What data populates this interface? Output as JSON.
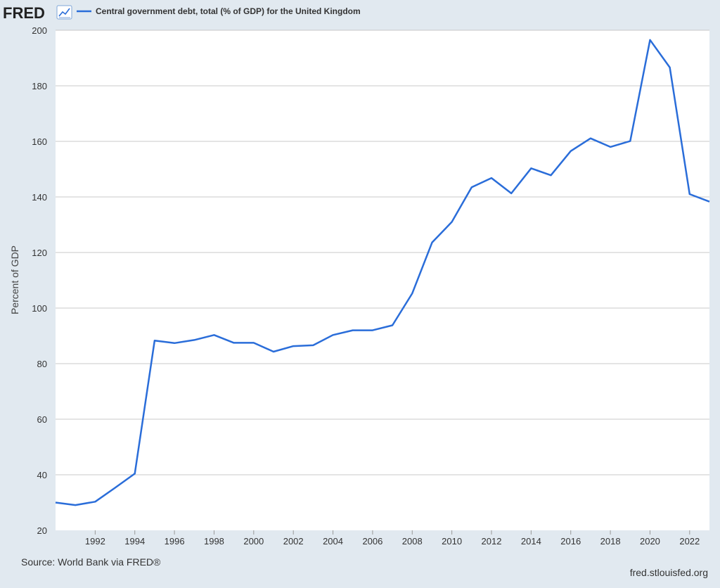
{
  "branding": {
    "logo_text": "FRED",
    "logo_icon": "line-chart-icon",
    "source_note": "Source: World Bank via FRED®",
    "site_url": "fred.stlouisfed.org"
  },
  "colors": {
    "background": "#e1e9f0",
    "plot_background": "#ffffff",
    "line": "#2a6dd9",
    "grid": "#c8c8c8"
  },
  "chart_data": {
    "type": "line",
    "title": "",
    "xlabel": "",
    "ylabel": "Percent of GDP",
    "xlim": [
      1990,
      2023
    ],
    "ylim": [
      20,
      200
    ],
    "y_ticks": [
      20,
      40,
      60,
      80,
      100,
      120,
      140,
      160,
      180,
      200
    ],
    "x_ticks": [
      1992,
      1994,
      1996,
      1998,
      2000,
      2002,
      2004,
      2006,
      2008,
      2010,
      2012,
      2014,
      2016,
      2018,
      2020,
      2022
    ],
    "grid": true,
    "legend_position": "top-left",
    "series": [
      {
        "name": "Central government debt, total (% of GDP) for the United Kingdom",
        "x": [
          1990,
          1991,
          1992,
          1993,
          1994,
          1995,
          1996,
          1997,
          1998,
          1999,
          2000,
          2001,
          2002,
          2003,
          2004,
          2005,
          2006,
          2007,
          2008,
          2009,
          2010,
          2011,
          2012,
          2013,
          2014,
          2015,
          2016,
          2017,
          2018,
          2019,
          2020,
          2021,
          2022,
          2023
        ],
        "y": [
          30.0,
          29.1,
          30.3,
          35.3,
          40.4,
          88.3,
          87.4,
          88.5,
          90.3,
          87.5,
          87.5,
          84.3,
          86.3,
          86.6,
          90.3,
          92.0,
          92.0,
          93.8,
          105.3,
          123.6,
          131.0,
          143.5,
          146.8,
          141.3,
          150.3,
          147.8,
          156.5,
          161.1,
          158.0,
          160.1,
          196.5,
          186.6,
          141.0,
          138.3
        ]
      }
    ]
  }
}
